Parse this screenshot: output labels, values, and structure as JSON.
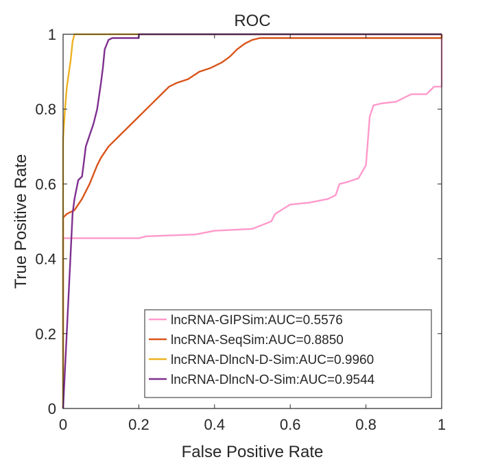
{
  "chart_data": {
    "type": "line",
    "title": "ROC",
    "xlabel": "False Positive Rate",
    "ylabel": "True Positive Rate",
    "xlim": [
      0,
      1
    ],
    "ylim": [
      0,
      1
    ],
    "xticks": [
      "0",
      "0.2",
      "0.4",
      "0.6",
      "0.8",
      "1"
    ],
    "yticks": [
      "0",
      "0.2",
      "0.4",
      "0.6",
      "0.8",
      "1"
    ],
    "grid": false,
    "legend_position": "bottom-right",
    "series": [
      {
        "name": "lncRNA-GIPSim:AUC=0.5576",
        "color": "#ff99cc",
        "x": [
          0,
          0,
          0.05,
          0.2,
          0.22,
          0.35,
          0.4,
          0.5,
          0.55,
          0.56,
          0.6,
          0.65,
          0.7,
          0.72,
          0.73,
          0.75,
          0.78,
          0.8,
          0.81,
          0.82,
          0.84,
          0.88,
          0.9,
          0.92,
          0.96,
          0.98,
          1.0,
          1.0
        ],
        "y": [
          0,
          0.455,
          0.455,
          0.455,
          0.46,
          0.465,
          0.475,
          0.48,
          0.5,
          0.52,
          0.545,
          0.55,
          0.56,
          0.57,
          0.6,
          0.605,
          0.615,
          0.65,
          0.78,
          0.81,
          0.815,
          0.82,
          0.83,
          0.84,
          0.84,
          0.86,
          0.86,
          1.0
        ]
      },
      {
        "name": "lncRNA-SeqSim:AUC=0.8850",
        "color": "#d95319",
        "x": [
          0,
          0,
          0.01,
          0.03,
          0.05,
          0.07,
          0.09,
          0.1,
          0.12,
          0.15,
          0.18,
          0.2,
          0.23,
          0.26,
          0.28,
          0.3,
          0.33,
          0.36,
          0.39,
          0.42,
          0.44,
          0.46,
          0.48,
          0.5,
          0.52,
          1.0,
          1.0
        ],
        "y": [
          0,
          0.51,
          0.52,
          0.53,
          0.56,
          0.6,
          0.65,
          0.67,
          0.7,
          0.73,
          0.76,
          0.78,
          0.81,
          0.84,
          0.86,
          0.87,
          0.88,
          0.9,
          0.91,
          0.925,
          0.94,
          0.96,
          0.975,
          0.985,
          0.99,
          0.99,
          1.0
        ]
      },
      {
        "name": "lncRNA-DlncN-D-Sim:AUC=0.9960",
        "color": "#edb120",
        "x": [
          0,
          0,
          0.005,
          0.01,
          0.02,
          0.025,
          0.03,
          0.2,
          1.0
        ],
        "y": [
          0,
          0.72,
          0.8,
          0.86,
          0.93,
          0.98,
          1.0,
          1.0,
          1.0
        ]
      },
      {
        "name": "lncRNA-DlncN-O-Sim:AUC=0.9544",
        "color": "#7e2f8e",
        "x": [
          0,
          0.025,
          0.03,
          0.04,
          0.05,
          0.055,
          0.06,
          0.07,
          0.08,
          0.09,
          0.1,
          0.105,
          0.11,
          0.12,
          0.13,
          0.14,
          0.2,
          0.2,
          1.0
        ],
        "y": [
          0,
          0.52,
          0.56,
          0.61,
          0.62,
          0.66,
          0.7,
          0.73,
          0.76,
          0.8,
          0.87,
          0.91,
          0.96,
          0.985,
          0.99,
          0.99,
          0.99,
          1.0,
          1.0
        ]
      }
    ]
  }
}
